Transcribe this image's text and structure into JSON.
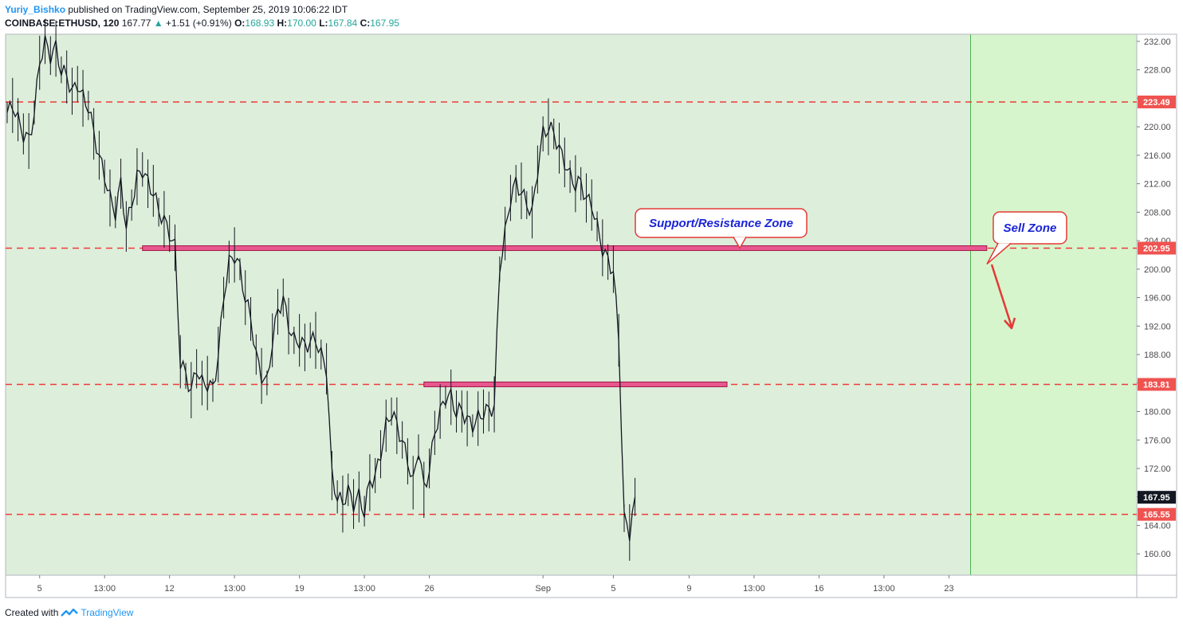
{
  "header": {
    "author": "Yuriy_Bishko",
    "published_text": "published on TradingView.com, September 25, 2019 10:06:22 IDT",
    "symbol": "COINBASE:ETHUSD, 120",
    "last": "167.77",
    "change": "+1.51 (+0.91%)",
    "o_label": "O:",
    "o_value": "168.93",
    "h_label": "H:",
    "h_value": "170.00",
    "l_label": "L:",
    "l_value": "167.84",
    "c_label": "C:",
    "c_value": "167.95"
  },
  "footer": {
    "created_with": "Created with",
    "brand": "TradingView"
  },
  "chart_data": {
    "type": "line",
    "ylim": [
      157,
      233
    ],
    "y_ticks": [
      "232.00",
      "228.00",
      "224.00",
      "220.00",
      "216.00",
      "212.00",
      "208.00",
      "204.00",
      "200.00",
      "196.00",
      "192.00",
      "188.00",
      "184.00",
      "180.00",
      "176.00",
      "172.00",
      "168.00",
      "164.00",
      "160.00"
    ],
    "x_ticks": [
      {
        "label": "5",
        "i": 6
      },
      {
        "label": "13:00",
        "i": 18
      },
      {
        "label": "12",
        "i": 30
      },
      {
        "label": "13:00",
        "i": 42
      },
      {
        "label": "19",
        "i": 54
      },
      {
        "label": "13:00",
        "i": 66
      },
      {
        "label": "26",
        "i": 78
      },
      {
        "label": "Sep",
        "i": 99
      },
      {
        "label": "5",
        "i": 112
      },
      {
        "label": "9",
        "i": 126
      },
      {
        "label": "13:00",
        "i": 138
      },
      {
        "label": "16",
        "i": 150
      },
      {
        "label": "13:00",
        "i": 162
      },
      {
        "label": "23",
        "i": 174
      }
    ],
    "price_levels": [
      {
        "value": 223.49,
        "label": "223.49"
      },
      {
        "value": 202.95,
        "label": "202.95"
      },
      {
        "value": 183.81,
        "label": "183.81"
      },
      {
        "value": 165.55,
        "label": "165.55"
      }
    ],
    "last_price": {
      "value": 167.95,
      "label": "167.95"
    },
    "zones": [
      {
        "from_i": 25,
        "to_i": 181,
        "value": 202.95
      },
      {
        "from_i": 77,
        "to_i": 133,
        "value": 183.81
      }
    ],
    "annotations": [
      {
        "text": "Support/Resistance Zone"
      },
      {
        "text": "Sell Zone"
      }
    ],
    "forecast_start_i": 178,
    "series": [
      {
        "values": [
          222,
          223,
          221,
          219,
          218,
          222,
          229,
          232,
          230,
          231,
          228,
          227,
          225,
          226,
          224,
          223,
          219,
          216,
          213,
          210,
          208,
          212,
          206,
          209,
          213,
          214,
          212,
          211,
          208,
          207,
          205,
          203,
          187,
          185,
          183,
          186,
          184,
          184,
          183,
          188,
          196,
          201,
          202,
          200,
          196,
          193,
          188,
          185,
          184,
          190,
          194,
          196,
          192,
          190,
          190,
          189,
          190,
          190,
          188,
          186,
          171,
          168,
          167,
          169,
          167,
          168,
          166,
          170,
          171,
          174,
          178,
          180,
          178,
          176,
          173,
          170,
          175,
          169,
          172,
          177,
          180,
          182,
          182,
          180,
          180,
          179,
          178,
          179,
          180,
          180,
          181,
          200,
          205,
          210,
          212,
          211,
          209,
          208,
          214,
          219,
          220,
          219,
          217,
          215,
          213,
          212,
          212,
          210,
          209,
          206,
          203,
          201,
          200,
          190,
          165,
          163,
          168
        ]
      }
    ]
  }
}
